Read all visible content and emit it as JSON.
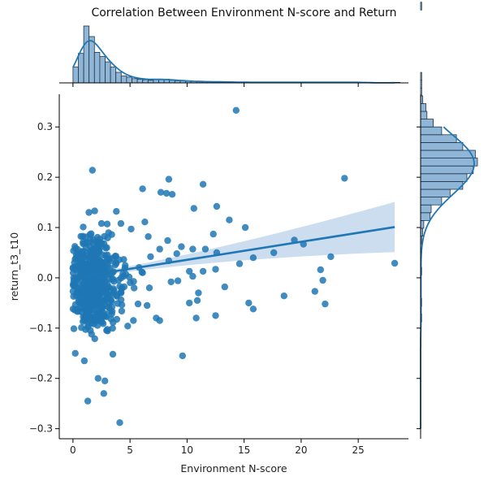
{
  "chart_data": {
    "type": "scatter",
    "title": "Correlation Between Environment N-score and Return",
    "xlabel": "Environment N-score",
    "ylabel": "return_t3_t10",
    "xlim": [
      -1.2,
      29.4
    ],
    "ylim": [
      -0.32,
      0.365
    ],
    "x_ticks": [
      0,
      5,
      10,
      15,
      20,
      25
    ],
    "y_ticks": [
      -0.3,
      -0.2,
      -0.1,
      0.0,
      0.1,
      0.2,
      0.3
    ],
    "x_tick_labels": [
      "0",
      "5",
      "10",
      "15",
      "20",
      "25"
    ],
    "y_tick_labels": [
      "−0.3",
      "−0.2",
      "−0.1",
      "0.0",
      "0.1",
      "0.2",
      "0.3"
    ],
    "grid": false,
    "colors": {
      "points": "#1f77b4",
      "fit_line": "#1f77b4",
      "ci_band": "#b9d2ea",
      "hist_fill": "#8fb6d7",
      "hist_edge": "#1f3348"
    },
    "regression": {
      "x": [
        0,
        28.2
      ],
      "y": [
        0.0,
        0.101
      ],
      "ci_lower_end": 0.06,
      "ci_upper_end": 0.151
    },
    "points_outliers": [
      {
        "x": 14.3,
        "y": 0.333
      },
      {
        "x": 1.7,
        "y": 0.214
      },
      {
        "x": 8.4,
        "y": 0.196
      },
      {
        "x": 11.4,
        "y": 0.186
      },
      {
        "x": 6.1,
        "y": 0.177
      },
      {
        "x": 7.7,
        "y": 0.17
      },
      {
        "x": 8.2,
        "y": 0.168
      },
      {
        "x": 8.7,
        "y": 0.166
      },
      {
        "x": 23.8,
        "y": 0.198
      },
      {
        "x": 12.6,
        "y": 0.142
      },
      {
        "x": 10.6,
        "y": 0.138
      },
      {
        "x": 1.4,
        "y": 0.13
      },
      {
        "x": 1.9,
        "y": 0.133
      },
      {
        "x": 3.8,
        "y": 0.132
      },
      {
        "x": 13.7,
        "y": 0.115
      },
      {
        "x": 6.3,
        "y": 0.111
      },
      {
        "x": 4.2,
        "y": 0.108
      },
      {
        "x": 2.5,
        "y": 0.108
      },
      {
        "x": 3.0,
        "y": 0.107
      },
      {
        "x": 0.9,
        "y": 0.101
      },
      {
        "x": 5.1,
        "y": 0.097
      },
      {
        "x": 15.1,
        "y": 0.1
      },
      {
        "x": 12.3,
        "y": 0.087
      },
      {
        "x": 6.6,
        "y": 0.082
      },
      {
        "x": 8.3,
        "y": 0.074
      },
      {
        "x": 19.4,
        "y": 0.075
      },
      {
        "x": 20.2,
        "y": 0.067
      },
      {
        "x": 17.6,
        "y": 0.05
      },
      {
        "x": 15.8,
        "y": 0.04
      },
      {
        "x": 22.6,
        "y": 0.042
      },
      {
        "x": 21.7,
        "y": 0.016
      },
      {
        "x": 28.2,
        "y": 0.029
      },
      {
        "x": 14.6,
        "y": 0.028
      },
      {
        "x": 12.5,
        "y": 0.017
      },
      {
        "x": 11.4,
        "y": 0.013
      },
      {
        "x": 10.2,
        "y": 0.013
      },
      {
        "x": 9.5,
        "y": 0.062
      },
      {
        "x": 10.5,
        "y": 0.057
      },
      {
        "x": 12.6,
        "y": 0.05
      },
      {
        "x": 9.1,
        "y": 0.048
      },
      {
        "x": 11.6,
        "y": 0.057
      },
      {
        "x": 7.6,
        "y": 0.057
      },
      {
        "x": 8.4,
        "y": 0.034
      },
      {
        "x": 21.9,
        "y": -0.005
      },
      {
        "x": 22.1,
        "y": -0.052
      },
      {
        "x": 21.2,
        "y": -0.027
      },
      {
        "x": 13.3,
        "y": -0.018
      },
      {
        "x": 18.5,
        "y": -0.036
      },
      {
        "x": 15.4,
        "y": -0.05
      },
      {
        "x": 15.8,
        "y": -0.062
      },
      {
        "x": 10.2,
        "y": -0.05
      },
      {
        "x": 12.5,
        "y": -0.075
      },
      {
        "x": 10.8,
        "y": -0.08
      },
      {
        "x": 9.6,
        "y": -0.155
      },
      {
        "x": 7.3,
        "y": -0.08
      },
      {
        "x": 7.6,
        "y": -0.085
      },
      {
        "x": 10.9,
        "y": -0.045
      },
      {
        "x": 11.0,
        "y": -0.03
      },
      {
        "x": 10.5,
        "y": 0.003
      },
      {
        "x": 9.2,
        "y": -0.006
      },
      {
        "x": 8.6,
        "y": -0.008
      },
      {
        "x": 1.3,
        "y": -0.245
      },
      {
        "x": 2.7,
        "y": -0.23
      },
      {
        "x": 2.8,
        "y": -0.205
      },
      {
        "x": 2.2,
        "y": -0.2
      },
      {
        "x": 4.1,
        "y": -0.288
      },
      {
        "x": 0.2,
        "y": -0.15
      },
      {
        "x": 1.0,
        "y": -0.165
      },
      {
        "x": 3.5,
        "y": -0.152
      },
      {
        "x": 6.7,
        "y": -0.02
      },
      {
        "x": 6.5,
        "y": -0.055
      },
      {
        "x": 6.1,
        "y": 0.01
      },
      {
        "x": 6.8,
        "y": 0.042
      },
      {
        "x": 5.3,
        "y": -0.085
      },
      {
        "x": 5.7,
        "y": -0.052
      },
      {
        "x": 4.8,
        "y": -0.096
      }
    ],
    "points_cluster": {
      "count": 560,
      "x_center": 1.8,
      "x_spread": 1.1,
      "x_max": 7.2,
      "y_center": -0.01,
      "y_spread": 0.045,
      "y_min": -0.14,
      "y_max": 0.09
    },
    "marginal_x": {
      "bin_edges_start": 0,
      "bin_width": 0.47,
      "counts": [
        30,
        56,
        108,
        88,
        58,
        50,
        40,
        30,
        20,
        13,
        11,
        8,
        7,
        6,
        5,
        6,
        6,
        7,
        5,
        4,
        4,
        3,
        3,
        2,
        2,
        2,
        2,
        2,
        1,
        2,
        1,
        1,
        1,
        1,
        1,
        1,
        1,
        1,
        1,
        1,
        1,
        1,
        1,
        1,
        1,
        1,
        1,
        1,
        1,
        1,
        1,
        1,
        1,
        1,
        1,
        0,
        0,
        0,
        0,
        0,
        1
      ],
      "kde_peak_x": 1.8
    },
    "marginal_y": {
      "bin_edges_start": -0.32,
      "bin_width": 0.0155,
      "counts": [
        0,
        0,
        0,
        0,
        0,
        0,
        0,
        0,
        0,
        0,
        0,
        0,
        0,
        0,
        0,
        1,
        0,
        1,
        0,
        0,
        0,
        1,
        0,
        0,
        0,
        1,
        2,
        3,
        9,
        10,
        20,
        28,
        40,
        44,
        50,
        54,
        52,
        40,
        34,
        20,
        12,
        6,
        5,
        2,
        1,
        1,
        1,
        0,
        0,
        0,
        0,
        0,
        0,
        0,
        0,
        1,
        0,
        0,
        0,
        0,
        0,
        0,
        0,
        0,
        1,
        0
      ]
    }
  }
}
